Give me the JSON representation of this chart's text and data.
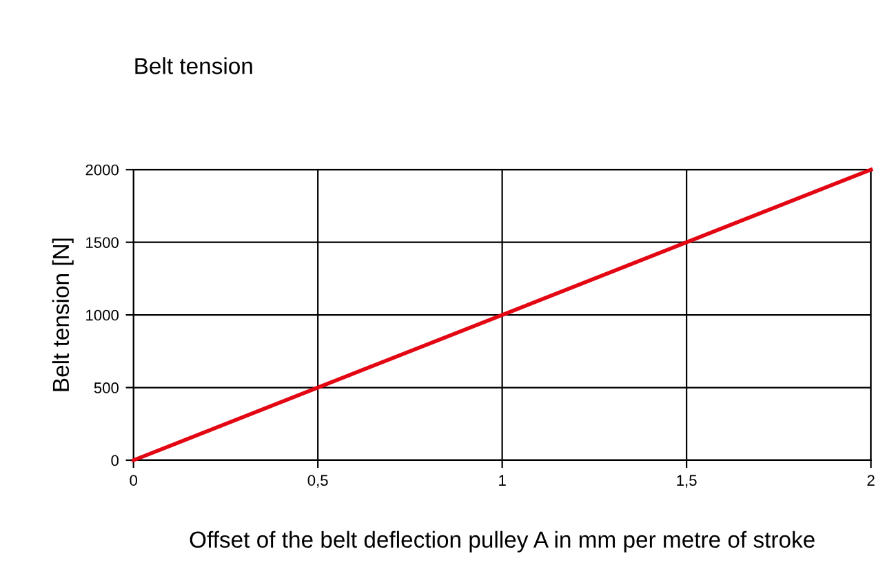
{
  "chart_data": {
    "type": "line",
    "title": "Belt tension",
    "xlabel": "Offset of the belt deflection pulley A in mm per metre of stroke",
    "ylabel": "Belt tension [N]",
    "x": [
      0,
      2
    ],
    "series": [
      {
        "color": "#e30613",
        "values": [
          0,
          2000
        ]
      }
    ],
    "xlim": [
      0,
      2
    ],
    "ylim": [
      0,
      2000
    ],
    "xticks": [
      0,
      {
        "value": 0.5,
        "label": "0,5"
      },
      1,
      {
        "value": 1.5,
        "label": "1,5"
      },
      2
    ],
    "yticks": [
      0,
      500,
      1000,
      1500,
      2000
    ],
    "grid": true,
    "marker": "none",
    "line_style": "solid",
    "legend": false
  }
}
